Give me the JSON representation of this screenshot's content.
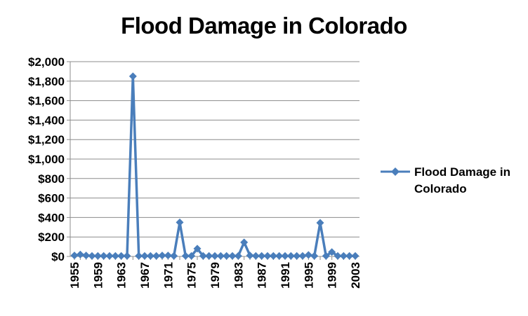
{
  "chart_data": {
    "type": "line",
    "title": "Flood Damage in Colorado",
    "xlabel": "",
    "ylabel": "",
    "ylim": [
      0,
      2000
    ],
    "ytick_labels": [
      "$0",
      "$200",
      "$400",
      "$600",
      "$800",
      "$1,000",
      "$1,200",
      "$1,400",
      "$1,600",
      "$1,800",
      "$2,000"
    ],
    "xtick_labels": [
      "1955",
      "1959",
      "1963",
      "1967",
      "1971",
      "1975",
      "1979",
      "1983",
      "1987",
      "1991",
      "1995",
      "1999",
      "2003"
    ],
    "grid": true,
    "legend_position": "right",
    "x": [
      1955,
      1956,
      1957,
      1958,
      1959,
      1960,
      1961,
      1962,
      1963,
      1964,
      1965,
      1966,
      1967,
      1968,
      1969,
      1970,
      1971,
      1972,
      1973,
      1974,
      1975,
      1976,
      1977,
      1978,
      1979,
      1980,
      1981,
      1982,
      1983,
      1984,
      1985,
      1986,
      1987,
      1988,
      1989,
      1990,
      1991,
      1992,
      1993,
      1994,
      1995,
      1996,
      1997,
      1998,
      1999,
      2000,
      2001,
      2002,
      2003
    ],
    "series": [
      {
        "name": "Flood Damage in Colorado",
        "color": "#4A7EBB",
        "values": [
          10,
          20,
          10,
          5,
          5,
          5,
          5,
          5,
          5,
          5,
          1850,
          5,
          5,
          5,
          5,
          10,
          10,
          5,
          350,
          5,
          5,
          80,
          5,
          5,
          5,
          5,
          5,
          5,
          5,
          145,
          10,
          5,
          5,
          5,
          5,
          5,
          5,
          5,
          5,
          5,
          15,
          5,
          345,
          5,
          45,
          5,
          5,
          5,
          5
        ]
      }
    ]
  }
}
